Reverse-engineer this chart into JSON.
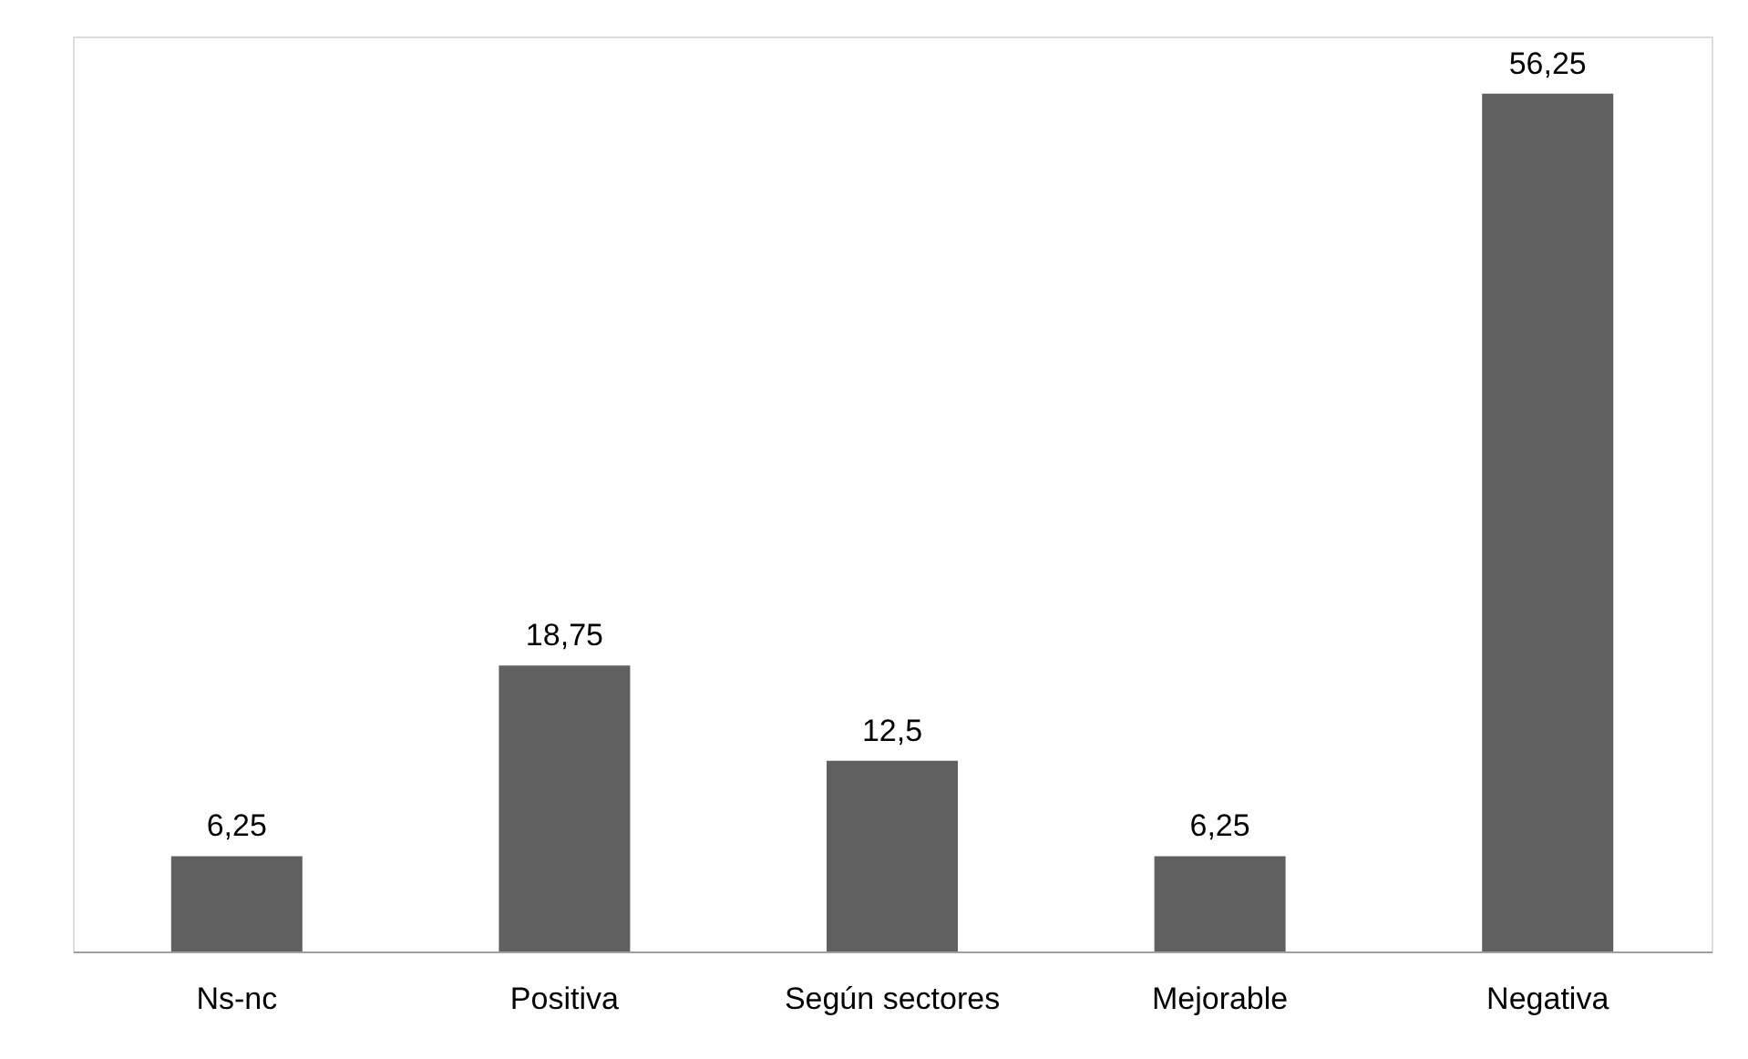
{
  "chart_data": {
    "type": "bar",
    "categories": [
      "Ns-nc",
      "Positiva",
      "Según sectores",
      "Mejorable",
      "Negativa"
    ],
    "values": [
      6.25,
      18.75,
      12.5,
      6.25,
      56.25
    ],
    "value_labels": [
      "6,25",
      "18,75",
      "12,5",
      "6,25",
      "56,25"
    ],
    "color": "#606060",
    "grid": false
  }
}
